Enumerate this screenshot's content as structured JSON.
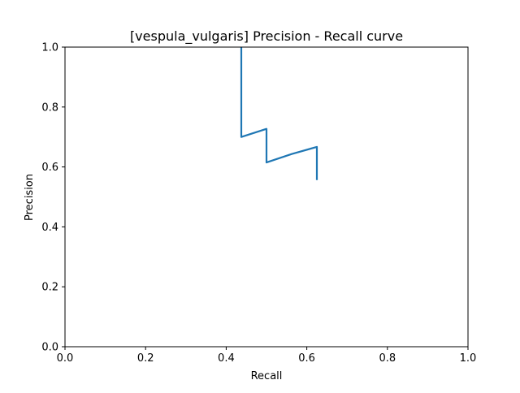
{
  "chart_data": {
    "type": "line",
    "title": "[vespula_vulgaris] Precision - Recall curve",
    "xlabel": "Recall",
    "ylabel": "Precision",
    "xlim": [
      0.0,
      1.0
    ],
    "ylim": [
      0.0,
      1.0
    ],
    "x_ticks": [
      "0.0",
      "0.2",
      "0.4",
      "0.6",
      "0.8",
      "1.0"
    ],
    "y_ticks": [
      "0.0",
      "0.2",
      "0.4",
      "0.6",
      "0.8",
      "1.0"
    ],
    "grid": false,
    "series": [
      {
        "color": "#1f77b4",
        "x": [
          0.4375,
          0.4375,
          0.4375,
          0.5,
          0.5,
          0.5625,
          0.625,
          0.625
        ],
        "y": [
          1.0,
          0.7,
          0.7,
          0.727,
          0.615,
          0.643,
          0.667,
          0.556
        ]
      }
    ]
  }
}
